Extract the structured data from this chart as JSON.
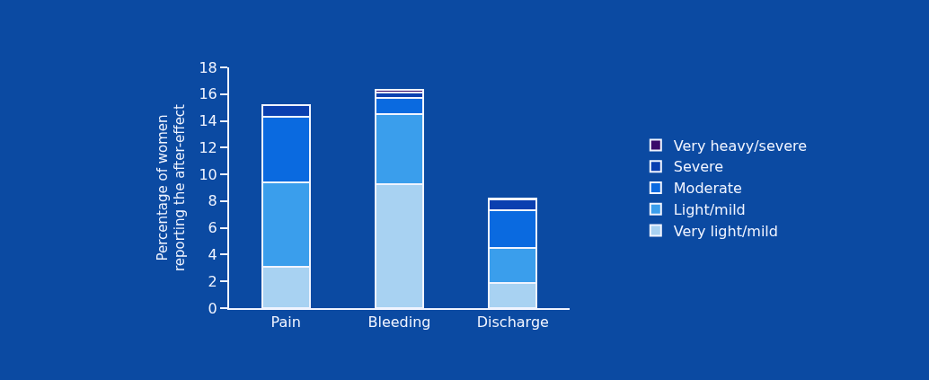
{
  "chart_data": {
    "type": "bar",
    "stacked": true,
    "ylabel": "Percentage of women\nreporting the after-effect",
    "categories": [
      "Pain",
      "Bleeding",
      "Discharge"
    ],
    "series": [
      {
        "name": "Very light/mild",
        "color": "#a8d2f2",
        "values": [
          3.1,
          9.3,
          1.9
        ]
      },
      {
        "name": "Light/mild",
        "color": "#3a9eec",
        "values": [
          6.3,
          5.2,
          2.6
        ]
      },
      {
        "name": "Moderate",
        "color": "#0a6ae0",
        "values": [
          4.9,
          1.2,
          2.8
        ]
      },
      {
        "name": "Severe",
        "color": "#0a3fb0",
        "values": [
          0.9,
          0.4,
          0.8
        ]
      },
      {
        "name": "Very heavy/severe",
        "color": "#3a0a6a",
        "values": [
          null,
          0.2,
          0.1
        ]
      }
    ],
    "ylim": [
      0,
      18
    ],
    "yticks": [
      0,
      2,
      4,
      6,
      8,
      10,
      12,
      14,
      16,
      18
    ],
    "grid": false,
    "legend": "right"
  }
}
